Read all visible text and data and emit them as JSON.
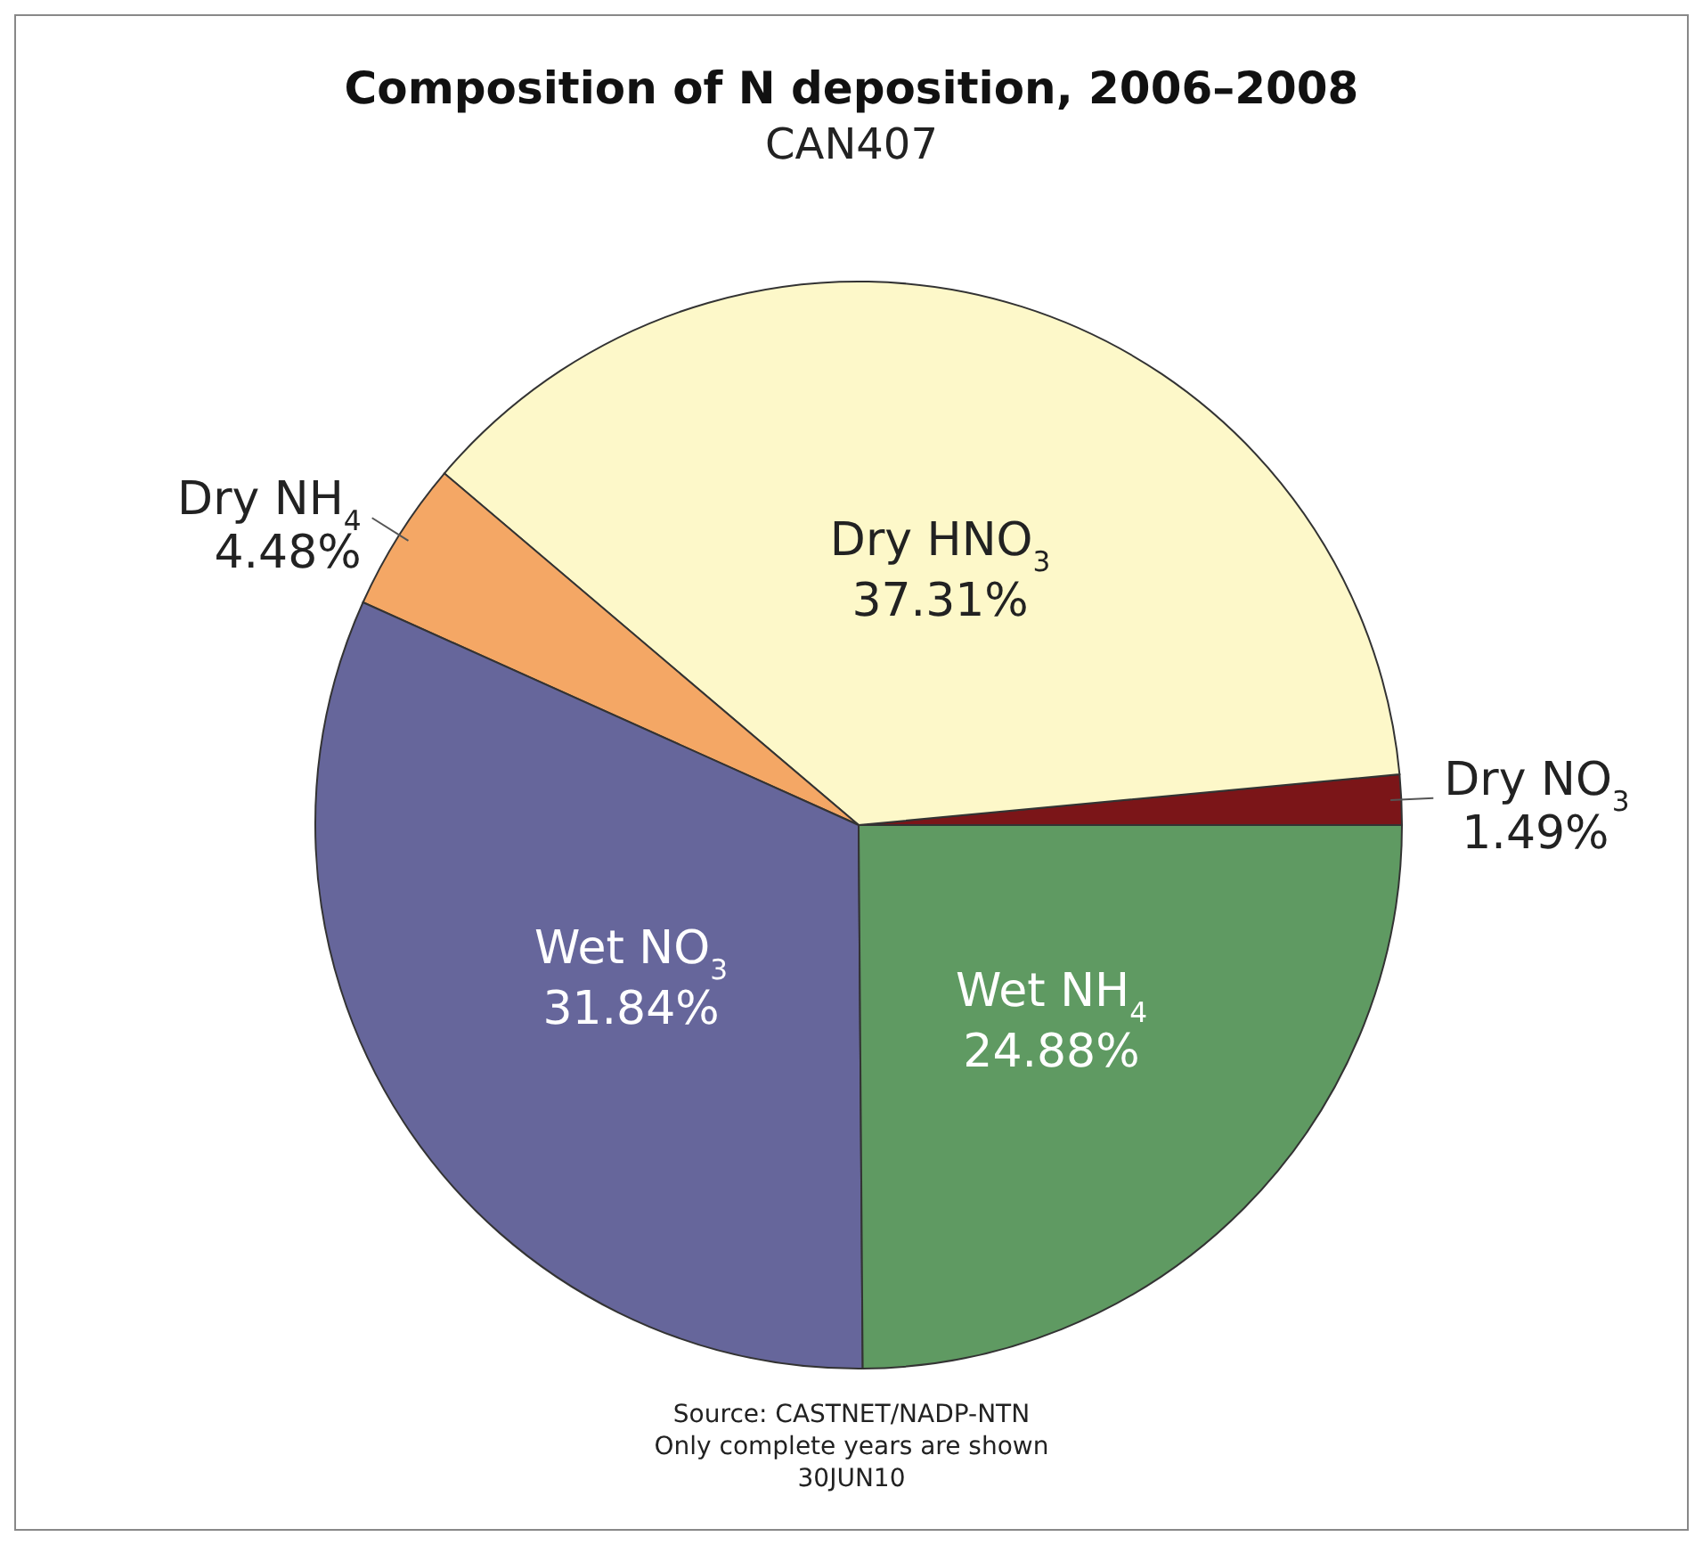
{
  "chart_data": {
    "type": "pie",
    "title": "Composition of N deposition, 2006–2008",
    "subtitle": "CAN407",
    "categories": [
      "Dry NO$_{3}$",
      "Dry HNO$_{3}$",
      "Dry NH$_{4}$",
      "Wet NO$_{3}$",
      "Wet NH$_{4}$"
    ],
    "values": [
      1.49,
      37.31,
      4.48,
      31.84,
      24.88
    ],
    "colors": [
      "#7b1518",
      "#fdf8c9",
      "#f4a765",
      "#66669b",
      "#5f9a62"
    ],
    "value_labels": [
      "1.49%",
      "37.31%",
      "4.48%",
      "31.84%",
      "24.88%"
    ],
    "annotations": [
      "Source: CASTNET/NADP-NTN",
      "Only complete years are shown",
      "30JUN10"
    ]
  }
}
